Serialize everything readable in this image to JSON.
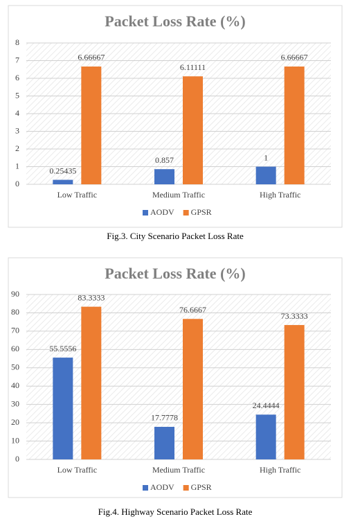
{
  "chart_data": [
    {
      "type": "bar",
      "title": "Packet Loss Rate (%)",
      "caption": "Fig.3. City Scenario Packet Loss Rate",
      "categories": [
        "Low Traffic",
        "Medium Traffic",
        "High Traffic"
      ],
      "series": [
        {
          "name": "AODV",
          "color": "#4472c4",
          "values": [
            0.25435,
            0.857,
            1
          ]
        },
        {
          "name": "GPSR",
          "color": "#ed7d31",
          "values": [
            6.66667,
            6.11111,
            6.66667
          ]
        }
      ],
      "ylim": [
        0,
        8
      ],
      "yticks": [
        0,
        1,
        2,
        3,
        4,
        5,
        6,
        7,
        8
      ],
      "grid": true,
      "legend": "bottom"
    },
    {
      "type": "bar",
      "title": "Packet Loss Rate (%)",
      "caption": "Fig.4. Highway Scenario Packet Loss Rate",
      "categories": [
        "Low Traffic",
        "Medium Traffic",
        "High Traffic"
      ],
      "series": [
        {
          "name": "AODV",
          "color": "#4472c4",
          "values": [
            55.5556,
            17.7778,
            24.4444
          ]
        },
        {
          "name": "GPSR",
          "color": "#ed7d31",
          "values": [
            83.3333,
            76.6667,
            73.3333
          ]
        }
      ],
      "ylim": [
        0,
        90
      ],
      "yticks": [
        0,
        10,
        20,
        30,
        40,
        50,
        60,
        70,
        80,
        90
      ],
      "grid": true,
      "legend": "bottom"
    }
  ]
}
